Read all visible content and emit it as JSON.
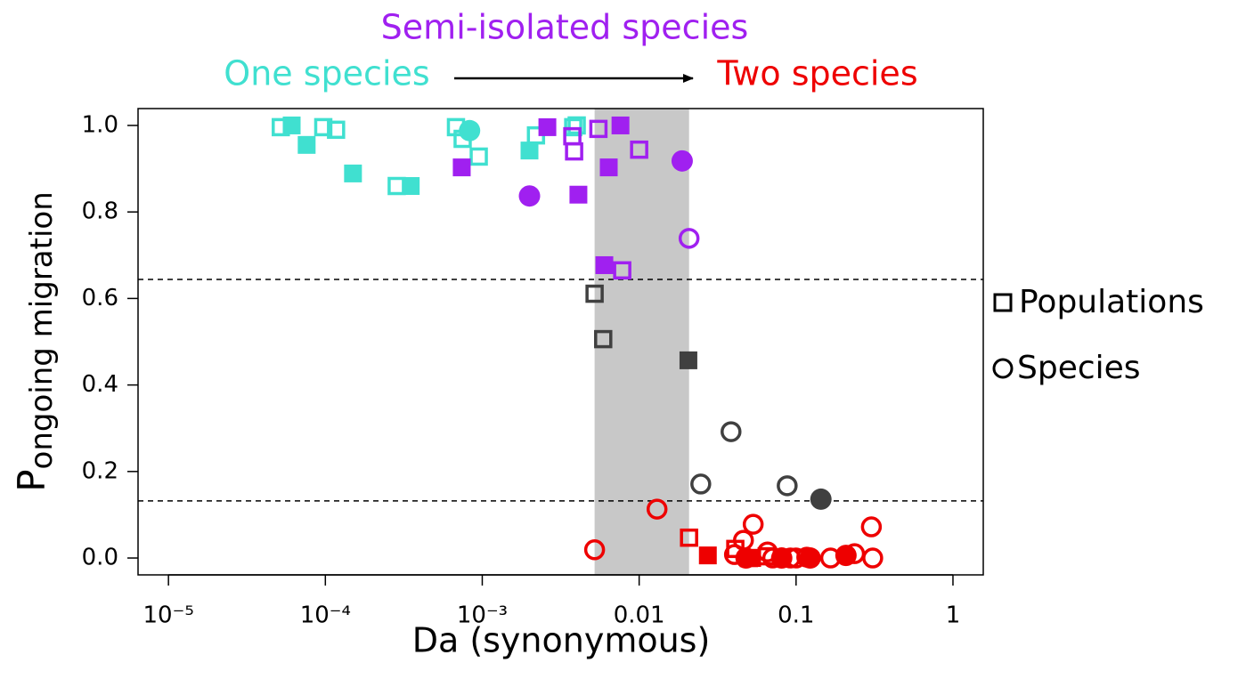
{
  "chart_data": {
    "type": "scatter",
    "x_label": "Da (synonymous)",
    "y_label": {
      "main": "P",
      "sub": "ongoing migration"
    },
    "annotations": [
      {
        "text": "Semi-isolated species",
        "color": "#a020f0"
      },
      {
        "text": "One species",
        "color": "#40e0d0"
      },
      {
        "text": "Two species",
        "color": "#ee0000"
      }
    ],
    "legend": [
      {
        "shape": "square",
        "label": "Populations"
      },
      {
        "shape": "circle",
        "label": "Species"
      }
    ],
    "xscale": "log",
    "xlim": [
      6.4e-06,
      1.56
    ],
    "ylim": [
      -0.039,
      1.039
    ],
    "xticks": [
      {
        "value": 1e-05,
        "label": "10⁻⁵"
      },
      {
        "value": 0.0001,
        "label": "10⁻⁴"
      },
      {
        "value": 0.001,
        "label": "10⁻³"
      },
      0.01,
      0.1,
      1
    ],
    "yticks": [
      {
        "value": 0,
        "label": "0.0"
      },
      0.2,
      0.4,
      0.6,
      0.8,
      {
        "value": 1,
        "label": "1.0"
      }
    ],
    "shade": {
      "xrange": [
        0.0052,
        0.0208
      ],
      "color": "#c8c8c8"
    },
    "hlines": [
      0.644,
      0.132
    ],
    "series": [
      {
        "color": "#40e0d0",
        "shape": "square",
        "filled": true,
        "x": [
          6.1e-05,
          7.6e-05,
          0.00015,
          0.00035,
          0.002
        ],
        "y": [
          1.0,
          0.955,
          0.889,
          0.86,
          0.942
        ]
      },
      {
        "color": "#40e0d0",
        "shape": "square",
        "filled": false,
        "x": [
          5.2e-05,
          9.7e-05,
          0.000117,
          0.000285,
          0.00068,
          0.00075,
          0.00095,
          0.0022,
          0.0038,
          0.004
        ],
        "y": [
          0.996,
          0.996,
          0.99,
          0.86,
          0.996,
          0.969,
          0.928,
          0.977,
          0.996,
          1.0
        ]
      },
      {
        "color": "#40e0d0",
        "shape": "circle",
        "filled": true,
        "x": [
          0.00083
        ],
        "y": [
          0.988
        ]
      },
      {
        "color": "#a020f0",
        "shape": "square",
        "filled": true,
        "x": [
          0.0026,
          0.00074,
          0.0041,
          0.0064,
          0.0076,
          0.006
        ],
        "y": [
          0.996,
          0.903,
          0.84,
          0.903,
          1.0,
          0.677
        ]
      },
      {
        "color": "#a020f0",
        "shape": "square",
        "filled": false,
        "x": [
          0.00375,
          0.00385,
          0.0055,
          0.01,
          0.0078
        ],
        "y": [
          0.975,
          0.94,
          0.992,
          0.944,
          0.665
        ]
      },
      {
        "color": "#a020f0",
        "shape": "circle",
        "filled": true,
        "x": [
          0.002,
          0.0188
        ],
        "y": [
          0.837,
          0.918
        ]
      },
      {
        "color": "#a020f0",
        "shape": "circle",
        "filled": false,
        "x": [
          0.0208
        ],
        "y": [
          0.739
        ]
      },
      {
        "color": "#404040",
        "shape": "square",
        "filled": false,
        "x": [
          0.0052,
          0.0059
        ],
        "y": [
          0.611,
          0.506
        ]
      },
      {
        "color": "#404040",
        "shape": "square",
        "filled": true,
        "x": [
          0.0206
        ],
        "y": [
          0.457
        ]
      },
      {
        "color": "#404040",
        "shape": "circle",
        "filled": false,
        "x": [
          0.0385,
          0.0247,
          0.0878
        ],
        "y": [
          0.292,
          0.171,
          0.167
        ]
      },
      {
        "color": "#404040",
        "shape": "circle",
        "filled": true,
        "x": [
          0.144
        ],
        "y": [
          0.136
        ]
      },
      {
        "color": "#ee0000",
        "shape": "circle",
        "filled": false,
        "x": [
          0.0052,
          0.013,
          0.0533,
          0.0462,
          0.0405,
          0.0658,
          0.071,
          0.1,
          0.166,
          0.236,
          0.302,
          0.308,
          0.117,
          0.092
        ],
        "y": [
          0.019,
          0.113,
          0.078,
          0.041,
          0.008,
          0.014,
          0.0,
          0.0,
          0.0,
          0.01,
          0.072,
          0.0,
          0.002,
          0.0
        ]
      },
      {
        "color": "#ee0000",
        "shape": "circle",
        "filled": true,
        "x": [
          0.048,
          0.081,
          0.123,
          0.208
        ],
        "y": [
          0.0,
          0.0,
          0.0,
          0.006
        ]
      },
      {
        "color": "#ee0000",
        "shape": "square",
        "filled": false,
        "x": [
          0.0208,
          0.041,
          0.065,
          0.05
        ],
        "y": [
          0.047,
          0.021,
          0.004,
          0.0
        ]
      },
      {
        "color": "#ee0000",
        "shape": "square",
        "filled": true,
        "x": [
          0.0274,
          0.0525
        ],
        "y": [
          0.006,
          0.0
        ]
      }
    ]
  }
}
